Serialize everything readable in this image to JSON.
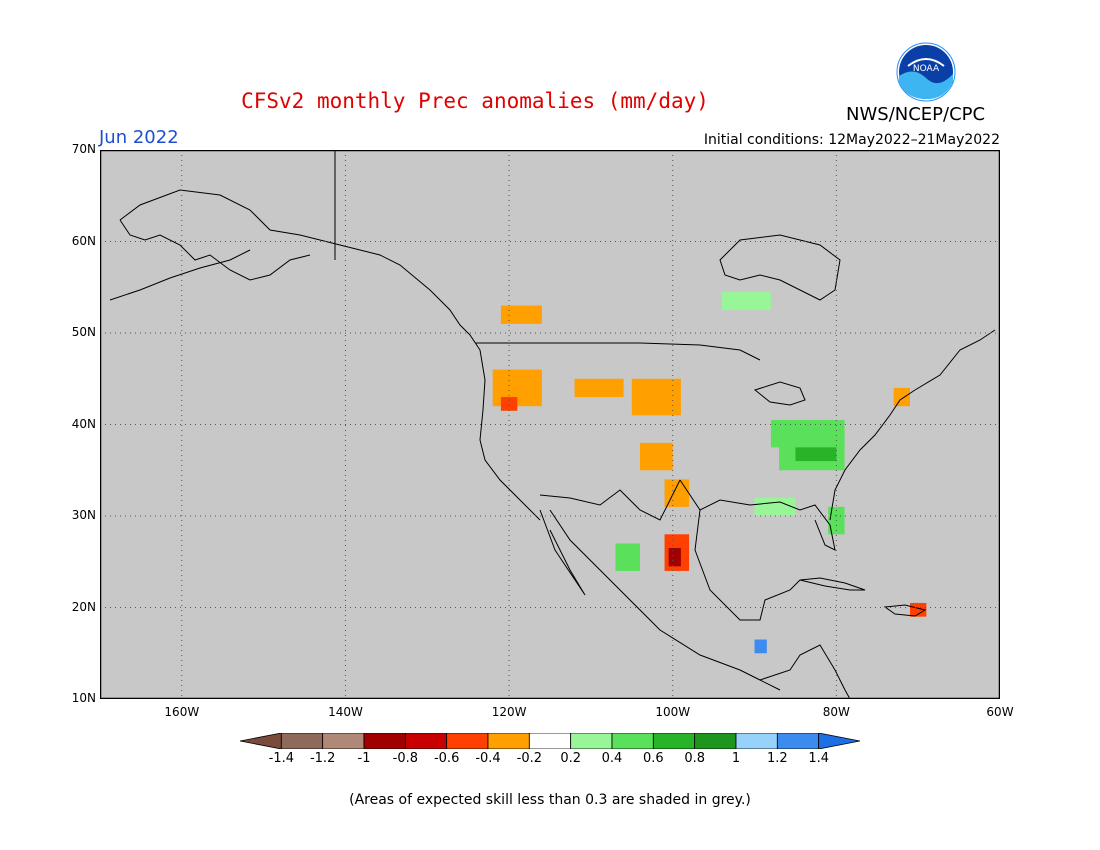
{
  "title": "CFSv2 monthly Prec anomalies (mm/day)",
  "month": "Jun 2022",
  "initial_conditions": "Initial conditions: 12May2022–21May2022",
  "agency": "NWS/NCEP/CPC",
  "logo_text": "NOAA",
  "footnote": "(Areas of expected skill less than 0.3 are shaded in grey.)",
  "colors": {
    "grey_mask": "#c8c8c8",
    "ocean_land_outline": "#000000",
    "title_red": "#e00000",
    "month_blue": "#1f4fd0"
  },
  "map": {
    "lon_min": -170,
    "lon_max": -60,
    "lat_min": 10,
    "lat_max": 70,
    "lat_ticks": [
      {
        "value": 70,
        "label": "70N"
      },
      {
        "value": 60,
        "label": "60N"
      },
      {
        "value": 50,
        "label": "50N"
      },
      {
        "value": 40,
        "label": "40N"
      },
      {
        "value": 30,
        "label": "30N"
      },
      {
        "value": 20,
        "label": "20N"
      },
      {
        "value": 10,
        "label": "10N"
      }
    ],
    "lon_ticks": [
      {
        "value": -160,
        "label": "160W"
      },
      {
        "value": -140,
        "label": "140W"
      },
      {
        "value": -120,
        "label": "120W"
      },
      {
        "value": -100,
        "label": "100W"
      },
      {
        "value": -80,
        "label": "80W"
      },
      {
        "value": -60,
        "label": "60W"
      }
    ],
    "anomaly_regions": [
      {
        "lon": -122,
        "lat": 42,
        "w": 6,
        "h": 4,
        "value": -0.3
      },
      {
        "lon": -121,
        "lat": 41.5,
        "w": 2,
        "h": 1.5,
        "value": -0.5
      },
      {
        "lon": -121,
        "lat": 51,
        "w": 5,
        "h": 2,
        "value": -0.3
      },
      {
        "lon": -112,
        "lat": 43,
        "w": 6,
        "h": 2,
        "value": -0.3
      },
      {
        "lon": -105,
        "lat": 41,
        "w": 6,
        "h": 4,
        "value": -0.3
      },
      {
        "lon": -104,
        "lat": 35,
        "w": 4,
        "h": 3,
        "value": -0.3
      },
      {
        "lon": -101,
        "lat": 31,
        "w": 3,
        "h": 3,
        "value": -0.3
      },
      {
        "lon": -101,
        "lat": 24,
        "w": 3,
        "h": 4,
        "value": -0.6
      },
      {
        "lon": -100.5,
        "lat": 24.5,
        "w": 1.5,
        "h": 2,
        "value": -0.9
      },
      {
        "lon": -88,
        "lat": 37.5,
        "w": 9,
        "h": 3,
        "value": 0.5
      },
      {
        "lon": -87,
        "lat": 35,
        "w": 8,
        "h": 4,
        "value": 0.5
      },
      {
        "lon": -85,
        "lat": 36,
        "w": 5,
        "h": 1.5,
        "value": 0.7
      },
      {
        "lon": -81,
        "lat": 28,
        "w": 2,
        "h": 3,
        "value": 0.5
      },
      {
        "lon": -90,
        "lat": 30,
        "w": 5,
        "h": 2,
        "value": 0.3
      },
      {
        "lon": -107,
        "lat": 24,
        "w": 3,
        "h": 3,
        "value": 0.5
      },
      {
        "lon": -94,
        "lat": 52.5,
        "w": 6,
        "h": 2,
        "value": 0.3
      },
      {
        "lon": -90,
        "lat": 15,
        "w": 1.5,
        "h": 1.5,
        "value": 1.3
      },
      {
        "lon": -71,
        "lat": 19,
        "w": 2,
        "h": 1.5,
        "value": -0.5
      },
      {
        "lon": -73,
        "lat": 42,
        "w": 2,
        "h": 2,
        "value": -0.4
      }
    ],
    "colorbar": {
      "labels": [
        "-1.4",
        "-1.2",
        "-1",
        "-0.8",
        "-0.6",
        "-0.4",
        "-0.2",
        "0.2",
        "0.4",
        "0.6",
        "0.8",
        "1",
        "1.2",
        "1.4"
      ],
      "colors": [
        "#7a4a3a",
        "#8e6a5a",
        "#b08878",
        "#a00000",
        "#c80000",
        "#ff4000",
        "#ff9f00",
        "#ffffff",
        "#98f598",
        "#5ae05a",
        "#28b428",
        "#1e961e",
        "#96d2fa",
        "#3c8cf0",
        "#1e6ee6"
      ]
    }
  }
}
